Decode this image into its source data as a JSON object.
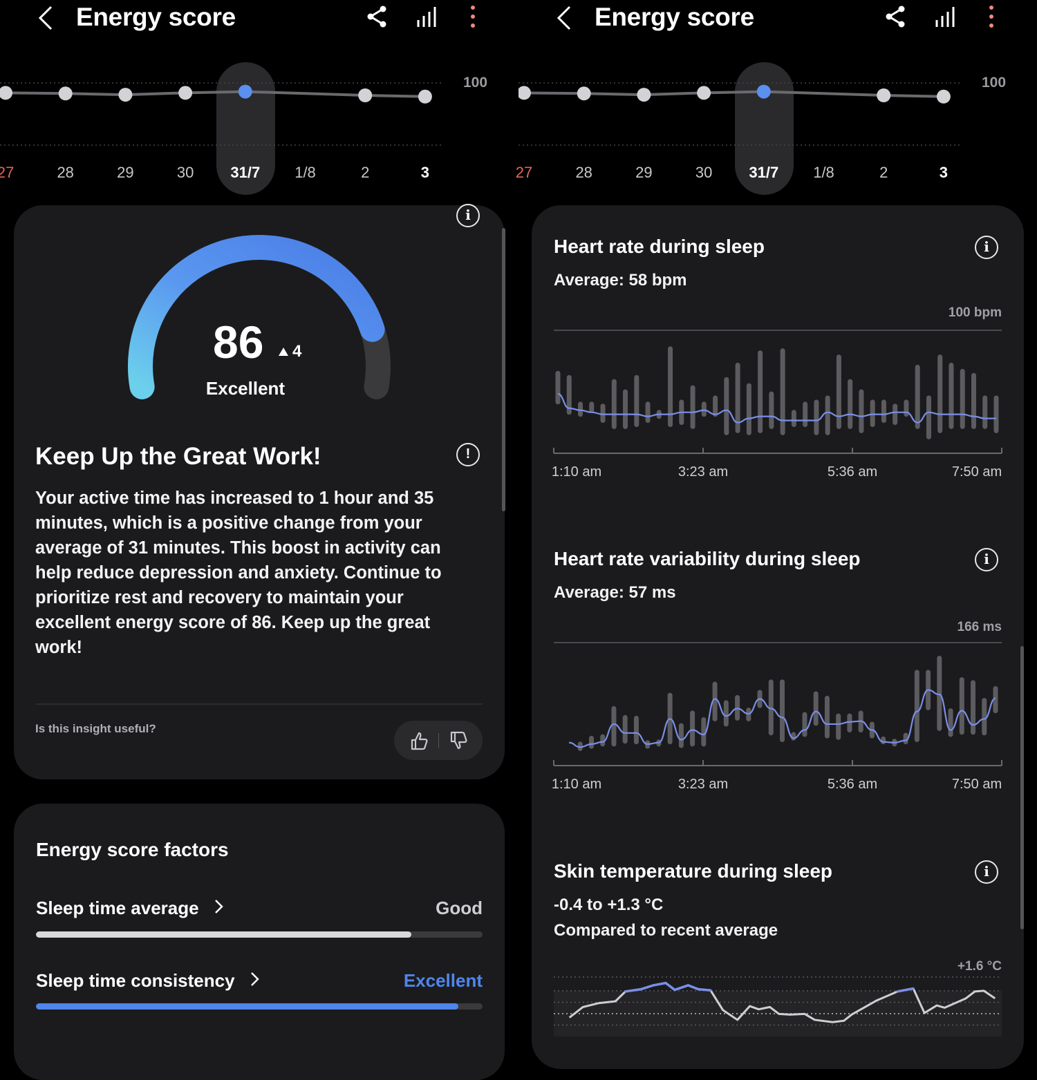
{
  "header": {
    "title": "Energy score",
    "back_icon": "chevron-left-icon",
    "share_icon": "share-icon",
    "stats_icon": "bar-chart-icon",
    "more_icon": "more-vertical-icon"
  },
  "colors": {
    "accent": "#5b8ff0",
    "weekend": "#e2675a",
    "hr_line": "#7b8ee8",
    "factor_good": "#d9d9dc",
    "factor_excellent": "#4f86ec"
  },
  "trend": {
    "y_max_label": "100",
    "dates": [
      "27",
      "28",
      "29",
      "30",
      "31/7",
      "1/8",
      "2",
      "3"
    ],
    "values": [
      84,
      83,
      81,
      84,
      86,
      null,
      80,
      78
    ],
    "selected_index": 4,
    "today_index": 7,
    "weekend_index": 0,
    "ylim": [
      0,
      100
    ]
  },
  "score": {
    "value": "86",
    "value_num": 86,
    "max": 100,
    "change": "4",
    "change_icon": "triangle-up-icon",
    "rating": "Excellent"
  },
  "insight": {
    "title": "Keep Up the Great Work!",
    "body": "Your active time has increased to 1 hour and 35 minutes, which is a positive change from your average of 31 minutes. This boost in activity can help reduce depression and anxiety. Continue to prioritize rest and recovery to maintain your excellent energy score of 86. Keep up the great work!",
    "feedback_question": "Is this insight useful?",
    "thumbs_up_icon": "thumbs-up-icon",
    "thumbs_down_icon": "thumbs-down-icon"
  },
  "factors": {
    "title": "Energy score factors",
    "items": [
      {
        "label": "Sleep time average",
        "rating": "Good",
        "progress": 0.84
      },
      {
        "label": "Sleep time consistency",
        "rating": "Excellent",
        "progress": 0.946
      }
    ]
  },
  "chart_data": [
    {
      "type": "line",
      "title": "Energy score",
      "categories": [
        "27",
        "28",
        "29",
        "30",
        "31/7",
        "1/8",
        "2",
        "3"
      ],
      "values": [
        84,
        83,
        81,
        84,
        86,
        null,
        80,
        78
      ],
      "ylim": [
        0,
        100
      ],
      "y_tick_label": "100",
      "grid": true
    },
    {
      "type": "bar",
      "title": "Heart rate during sleep",
      "subtitle": "Average: 58 bpm",
      "y_max_label": "100 bpm",
      "ylim": [
        40,
        100
      ],
      "x_ticks": [
        "1:10 am",
        "3:23 am",
        "5:36 am",
        "7:50 am"
      ],
      "ranges": [
        [
          65,
          79
        ],
        [
          60,
          77
        ],
        [
          59,
          64
        ],
        [
          61,
          64
        ],
        [
          56,
          63
        ],
        [
          53,
          75
        ],
        [
          53,
          70
        ],
        [
          54,
          77
        ],
        [
          56,
          64
        ],
        [
          58,
          60
        ],
        [
          54,
          91
        ],
        [
          55,
          65
        ],
        [
          53,
          72
        ],
        [
          59,
          64
        ],
        [
          59,
          67
        ],
        [
          50,
          76
        ],
        [
          51,
          83
        ],
        [
          50,
          73
        ],
        [
          51,
          89
        ],
        [
          53,
          69
        ],
        [
          50,
          90
        ],
        [
          54,
          60
        ],
        [
          54,
          64
        ],
        [
          50,
          65
        ],
        [
          50,
          67
        ],
        [
          53,
          87
        ],
        [
          53,
          75
        ],
        [
          51,
          70
        ],
        [
          54,
          65
        ],
        [
          56,
          65
        ],
        [
          55,
          63
        ],
        [
          59,
          65
        ],
        [
          53,
          82
        ],
        [
          48,
          67
        ],
        [
          51,
          87
        ],
        [
          53,
          83
        ],
        [
          53,
          80
        ],
        [
          53,
          78
        ],
        [
          53,
          67
        ],
        [
          51,
          67
        ]
      ],
      "line": [
        69,
        62,
        61,
        60,
        59,
        59,
        59,
        59,
        58,
        59,
        59,
        60,
        60,
        61,
        59,
        61,
        55,
        57,
        58,
        58,
        56,
        56,
        56,
        56,
        60,
        58,
        59,
        58,
        59,
        59,
        60,
        60,
        55,
        60,
        59,
        59,
        59,
        58,
        57,
        57
      ]
    },
    {
      "type": "bar",
      "title": "Heart rate variability during sleep",
      "subtitle": "Average: 57 ms",
      "y_max_label": "166 ms",
      "ylim": [
        0,
        166
      ],
      "x_ticks": [
        "1:10 am",
        "3:23 am",
        "5:36 am",
        "7:50 am"
      ],
      "ranges": [
        null,
        [
          23,
          29
        ],
        [
          26,
          37
        ],
        [
          29,
          39
        ],
        [
          29,
          77
        ],
        [
          33,
          65
        ],
        [
          32,
          64
        ],
        [
          26,
          31
        ],
        [
          29,
          32
        ],
        [
          32,
          95
        ],
        [
          27,
          54
        ],
        [
          29,
          71
        ],
        [
          29,
          62
        ],
        [
          63,
          110
        ],
        [
          56,
          85
        ],
        [
          64,
          92
        ],
        [
          63,
          75
        ],
        [
          81,
          99
        ],
        [
          44,
          113
        ],
        [
          35,
          113
        ],
        [
          37,
          42
        ],
        [
          42,
          69
        ],
        [
          57,
          97
        ],
        [
          40,
          91
        ],
        [
          38,
          67
        ],
        [
          48,
          67
        ],
        [
          48,
          71
        ],
        [
          40,
          56
        ],
        [
          32,
          36
        ],
        [
          29,
          33
        ],
        [
          32,
          41
        ],
        [
          35,
          126
        ],
        [
          78,
          126
        ],
        [
          50,
          145
        ],
        [
          42,
          74
        ],
        [
          45,
          116
        ],
        [
          45,
          112
        ],
        [
          44,
          88
        ],
        [
          74,
          104
        ]
      ],
      "line": [
        31,
        25,
        29,
        32,
        56,
        44,
        44,
        29,
        31,
        63,
        35,
        48,
        42,
        90,
        67,
        77,
        70,
        90,
        77,
        65,
        37,
        48,
        73,
        56,
        56,
        59,
        60,
        48,
        32,
        31,
        34,
        73,
        102,
        96,
        48,
        74,
        55,
        63,
        91
      ]
    },
    {
      "type": "line",
      "title": "Skin temperature during sleep",
      "subtitle": "-0.4 to +1.3 °C",
      "caption": "Compared to recent average",
      "y_max_label": "+1.6 °C",
      "ylim": [
        -0.6,
        1.6
      ],
      "normal_range_top": 1.0,
      "grid": true,
      "points": [
        [
          "1:24",
          -0.17
        ],
        [
          "1:36",
          0.29
        ],
        [
          "1:50",
          0.46
        ],
        [
          "2:05",
          0.54
        ],
        [
          "2:14",
          0.97
        ],
        [
          "2:28",
          1.07
        ],
        [
          "2:39",
          1.24
        ],
        [
          "2:50",
          1.34
        ],
        [
          "2:58",
          1.04
        ],
        [
          "3:10",
          1.24
        ],
        [
          "3:19",
          1.07
        ],
        [
          "3:30",
          1.02
        ],
        [
          "3:41",
          0.16
        ],
        [
          "3:54",
          -0.27
        ],
        [
          "4:05",
          0.33
        ],
        [
          "4:13",
          0.19
        ],
        [
          "4:23",
          0.29
        ],
        [
          "4:31",
          -0.01
        ],
        [
          "4:41",
          -0.04
        ],
        [
          "4:54",
          -0.01
        ],
        [
          "5:03",
          -0.27
        ],
        [
          "5:19",
          -0.37
        ],
        [
          "5:29",
          -0.31
        ],
        [
          "5:36",
          -0.04
        ],
        [
          "5:58",
          0.57
        ],
        [
          "6:17",
          0.97
        ],
        [
          "6:31",
          1.1
        ],
        [
          "6:41",
          0.03
        ],
        [
          "6:52",
          0.36
        ],
        [
          "6:59",
          0.26
        ],
        [
          "7:18",
          0.67
        ],
        [
          "7:26",
          0.97
        ],
        [
          "7:34",
          1.0
        ],
        [
          "7:44",
          0.67
        ]
      ]
    }
  ]
}
